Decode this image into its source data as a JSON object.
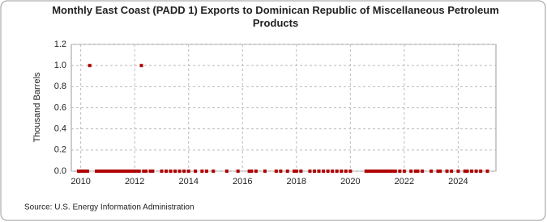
{
  "chart_data": {
    "type": "scatter",
    "title": "Monthly East Coast (PADD 1) Exports to Dominican Republic of Miscellaneous Petroleum Products",
    "y_label": "Thousand Barrels",
    "source": "Source: U.S. Energy Information Administration",
    "xlim": [
      2009.65,
      2025.4
    ],
    "xticks": [
      2010,
      2012,
      2014,
      2016,
      2018,
      2020,
      2022,
      2024
    ],
    "ylim": [
      0,
      1.2
    ],
    "yticks": [
      {
        "value": 0,
        "label": "0.0"
      },
      {
        "value": 0.2,
        "label": "0.2"
      },
      {
        "value": 0.4,
        "label": "0.4"
      },
      {
        "value": 0.6,
        "label": "0.6"
      },
      {
        "value": 0.8,
        "label": "0.8"
      },
      {
        "value": 1,
        "label": "1.0"
      },
      {
        "value": 1.2,
        "label": "1.2"
      }
    ],
    "grid": true,
    "series": [
      {
        "color": "#b00000",
        "x": [
          2009.917,
          2010.0,
          2010.083,
          2010.167,
          2010.25,
          2010.333,
          2010.583,
          2010.667,
          2010.75,
          2010.833,
          2010.917,
          2011.0,
          2011.083,
          2011.167,
          2011.25,
          2011.333,
          2011.417,
          2011.5,
          2011.583,
          2011.667,
          2011.75,
          2011.833,
          2011.917,
          2012.0,
          2012.083,
          2012.167,
          2012.25,
          2012.333,
          2012.417,
          2012.583,
          2012.667,
          2013.0,
          2013.167,
          2013.333,
          2013.5,
          2013.667,
          2013.833,
          2014.0,
          2014.25,
          2014.5,
          2014.667,
          2014.917,
          2015.417,
          2015.833,
          2016.25,
          2016.333,
          2016.5,
          2016.833,
          2017.25,
          2017.417,
          2017.667,
          2017.917,
          2018.0,
          2018.167,
          2018.5,
          2018.667,
          2018.833,
          2019.0,
          2019.167,
          2019.333,
          2019.5,
          2019.667,
          2019.833,
          2020.0,
          2020.583,
          2020.667,
          2020.75,
          2020.833,
          2020.917,
          2021.0,
          2021.083,
          2021.167,
          2021.25,
          2021.333,
          2021.417,
          2021.5,
          2021.583,
          2021.667,
          2021.833,
          2022.0,
          2022.25,
          2022.417,
          2022.5,
          2022.667,
          2023.0,
          2023.25,
          2023.333,
          2023.583,
          2023.75,
          2024.0,
          2024.25,
          2024.333,
          2024.5,
          2024.667,
          2024.833,
          2025.083
        ],
        "values": [
          0,
          0,
          0,
          0,
          0,
          1,
          0,
          0,
          0,
          0,
          0,
          0,
          0,
          0,
          0,
          0,
          0,
          0,
          0,
          0,
          0,
          0,
          0,
          0,
          0,
          0,
          1,
          0,
          0,
          0,
          0,
          0,
          0,
          0,
          0,
          0,
          0,
          0,
          0,
          0,
          0,
          0,
          0,
          0,
          0,
          0,
          0,
          0,
          0,
          0,
          0,
          0,
          0,
          0,
          0,
          0,
          0,
          0,
          0,
          0,
          0,
          0,
          0,
          0,
          0,
          0,
          0,
          0,
          0,
          0,
          0,
          0,
          0,
          0,
          0,
          0,
          0,
          0,
          0,
          0,
          0,
          0,
          0,
          0,
          0,
          0,
          0,
          0,
          0,
          0,
          0,
          0,
          0,
          0,
          0,
          0
        ]
      }
    ]
  }
}
